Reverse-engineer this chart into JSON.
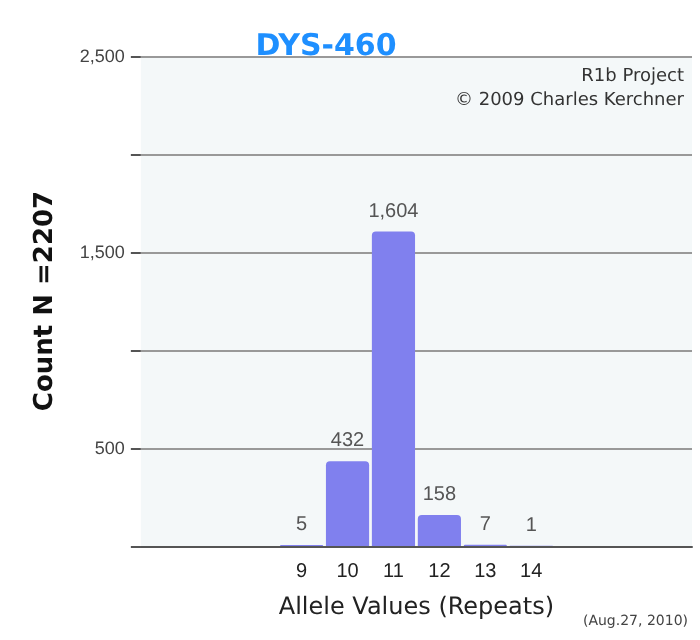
{
  "chart_data": {
    "type": "bar",
    "title": "DYS-460",
    "xlabel": "Allele Values (Repeats)",
    "ylabel": "Count N =2207",
    "annotations": [
      "R1b Project",
      "© 2009 Charles Kerchner",
      "(Aug.27, 2010)"
    ],
    "categories": [
      null,
      null,
      null,
      "9",
      "10",
      "11",
      "12",
      "13",
      "14",
      null,
      null,
      null
    ],
    "values": [
      null,
      null,
      null,
      5,
      432,
      1604,
      158,
      7,
      1,
      null,
      null,
      null
    ],
    "value_labels": [
      null,
      null,
      null,
      "5",
      "432",
      "1,604",
      "158",
      "7",
      "1",
      null,
      null,
      null
    ],
    "color": "#8080ee",
    "ylim": [
      0,
      2500
    ],
    "yticks": [
      {
        "value": 0,
        "label": null
      },
      500,
      {
        "value": 1000,
        "label": null
      },
      {
        "value": 1500,
        "label": "1,500"
      },
      {
        "value": 2000,
        "label": null
      },
      {
        "value": 2500,
        "label": "2,500"
      }
    ],
    "grid": "y"
  }
}
